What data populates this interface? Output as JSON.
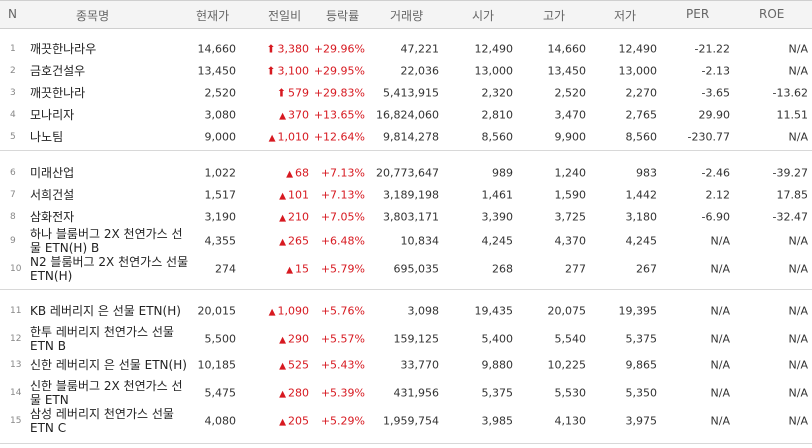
{
  "headers": {
    "n": "N",
    "name": "종목명",
    "price": "현재가",
    "change": "전일비",
    "rate": "등락률",
    "volume": "거래량",
    "open": "시가",
    "high": "고가",
    "low": "저가",
    "per": "PER",
    "roe": "ROE"
  },
  "rows": [
    {
      "n": "1",
      "name": "깨끗한나라우",
      "price": "14,660",
      "arrow": "🠅",
      "change": "3,380",
      "rate": "+29.96%",
      "volume": "47,221",
      "open": "12,490",
      "high": "14,660",
      "low": "12,490",
      "per": "-21.22",
      "roe": "N/A"
    },
    {
      "n": "2",
      "name": "금호건설우",
      "price": "13,450",
      "arrow": "🠅",
      "change": "3,100",
      "rate": "+29.95%",
      "volume": "22,036",
      "open": "13,000",
      "high": "13,450",
      "low": "13,000",
      "per": "-2.13",
      "roe": "N/A"
    },
    {
      "n": "3",
      "name": "깨끗한나라",
      "price": "2,520",
      "arrow": "🠅",
      "change": "579",
      "rate": "+29.83%",
      "volume": "5,413,915",
      "open": "2,320",
      "high": "2,520",
      "low": "2,270",
      "per": "-3.65",
      "roe": "-13.62"
    },
    {
      "n": "4",
      "name": "모나리자",
      "price": "3,080",
      "arrow": "▲",
      "change": "370",
      "rate": "+13.65%",
      "volume": "16,824,060",
      "open": "2,810",
      "high": "3,470",
      "low": "2,765",
      "per": "29.90",
      "roe": "11.51"
    },
    {
      "n": "5",
      "name": "나노팀",
      "price": "9,000",
      "arrow": "▲",
      "change": "1,010",
      "rate": "+12.64%",
      "volume": "9,814,278",
      "open": "8,560",
      "high": "9,900",
      "low": "8,560",
      "per": "-230.77",
      "roe": "N/A"
    },
    {
      "n": "6",
      "name": "미래산업",
      "price": "1,022",
      "arrow": "▲",
      "change": "68",
      "rate": "+7.13%",
      "volume": "20,773,647",
      "open": "989",
      "high": "1,240",
      "low": "983",
      "per": "-2.46",
      "roe": "-39.27"
    },
    {
      "n": "7",
      "name": "서희건설",
      "price": "1,517",
      "arrow": "▲",
      "change": "101",
      "rate": "+7.13%",
      "volume": "3,189,198",
      "open": "1,461",
      "high": "1,590",
      "low": "1,442",
      "per": "2.12",
      "roe": "17.85"
    },
    {
      "n": "8",
      "name": "삼화전자",
      "price": "3,190",
      "arrow": "▲",
      "change": "210",
      "rate": "+7.05%",
      "volume": "3,803,171",
      "open": "3,390",
      "high": "3,725",
      "low": "3,180",
      "per": "-6.90",
      "roe": "-32.47"
    },
    {
      "n": "9",
      "name": "하나 블룸버그 2X 천연가스 선물 ETN(H) B",
      "price": "4,355",
      "arrow": "▲",
      "change": "265",
      "rate": "+6.48%",
      "volume": "10,834",
      "open": "4,245",
      "high": "4,370",
      "low": "4,245",
      "per": "N/A",
      "roe": "N/A"
    },
    {
      "n": "10",
      "name": "N2 블룸버그 2X 천연가스 선물 ETN(H)",
      "price": "274",
      "arrow": "▲",
      "change": "15",
      "rate": "+5.79%",
      "volume": "695,035",
      "open": "268",
      "high": "277",
      "low": "267",
      "per": "N/A",
      "roe": "N/A"
    },
    {
      "n": "11",
      "name": "KB 레버리지 은 선물 ETN(H)",
      "price": "20,015",
      "arrow": "▲",
      "change": "1,090",
      "rate": "+5.76%",
      "volume": "3,098",
      "open": "19,435",
      "high": "20,075",
      "low": "19,395",
      "per": "N/A",
      "roe": "N/A"
    },
    {
      "n": "12",
      "name": "한투 레버리지 천연가스 선물 ETN B",
      "price": "5,500",
      "arrow": "▲",
      "change": "290",
      "rate": "+5.57%",
      "volume": "159,125",
      "open": "5,400",
      "high": "5,540",
      "low": "5,375",
      "per": "N/A",
      "roe": "N/A"
    },
    {
      "n": "13",
      "name": "신한 레버리지 은 선물 ETN(H)",
      "price": "10,185",
      "arrow": "▲",
      "change": "525",
      "rate": "+5.43%",
      "volume": "33,770",
      "open": "9,880",
      "high": "10,225",
      "low": "9,865",
      "per": "N/A",
      "roe": "N/A"
    },
    {
      "n": "14",
      "name": "신한 블룸버그 2X 천연가스 선물 ETN",
      "price": "5,475",
      "arrow": "▲",
      "change": "280",
      "rate": "+5.39%",
      "volume": "431,956",
      "open": "5,375",
      "high": "5,530",
      "low": "5,350",
      "per": "N/A",
      "roe": "N/A"
    },
    {
      "n": "15",
      "name": "삼성 레버리지 천연가스 선물 ETN C",
      "price": "4,080",
      "arrow": "▲",
      "change": "205",
      "rate": "+5.29%",
      "volume": "1,959,754",
      "open": "3,985",
      "high": "4,130",
      "low": "3,975",
      "per": "N/A",
      "roe": "N/A"
    }
  ],
  "colors": {
    "up": "#d71920",
    "header_bg": "#f4f4f4"
  }
}
